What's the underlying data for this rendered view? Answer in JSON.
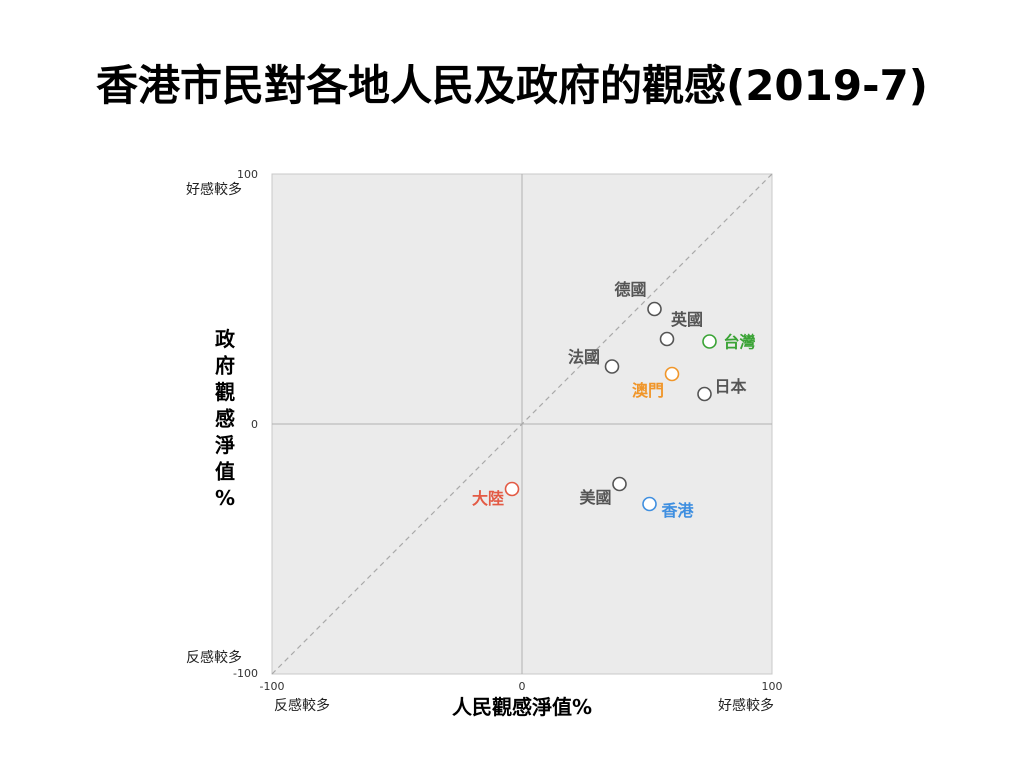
{
  "title": "香港市民對各地人民及政府的觀感(2019-7)",
  "chart_data": {
    "type": "scatter",
    "title": "香港市民對各地人民及政府的觀感(2019-7)",
    "xlabel": "人民觀感淨值%",
    "ylabel": "政府觀感淨值%",
    "xlim": [
      -100,
      100
    ],
    "ylim": [
      -100,
      100
    ],
    "x_ticks": [
      "-100",
      "0",
      "100"
    ],
    "y_ticks": [
      "100",
      "0",
      "-100"
    ],
    "x_end_labels": {
      "low": "反感較多",
      "high": "好感較多"
    },
    "y_end_labels": {
      "high": "好感較多",
      "low": "反感較多"
    },
    "reference_line": "y = x (dashed)",
    "grid": "zero lines only",
    "points": [
      {
        "name": "德國",
        "x": 53,
        "y": 46,
        "color": "#555555"
      },
      {
        "name": "英國",
        "x": 58,
        "y": 34,
        "color": "#555555"
      },
      {
        "name": "台灣",
        "x": 75,
        "y": 33,
        "color": "#3aa335"
      },
      {
        "name": "法國",
        "x": 36,
        "y": 23,
        "color": "#555555"
      },
      {
        "name": "澳門",
        "x": 60,
        "y": 20,
        "color": "#f0962a"
      },
      {
        "name": "日本",
        "x": 73,
        "y": 12,
        "color": "#555555"
      },
      {
        "name": "美國",
        "x": 39,
        "y": -24,
        "color": "#555555"
      },
      {
        "name": "香港",
        "x": 51,
        "y": -32,
        "color": "#3f8fe0"
      },
      {
        "name": "大陸",
        "x": -4,
        "y": -26,
        "color": "#e35a44"
      }
    ]
  }
}
